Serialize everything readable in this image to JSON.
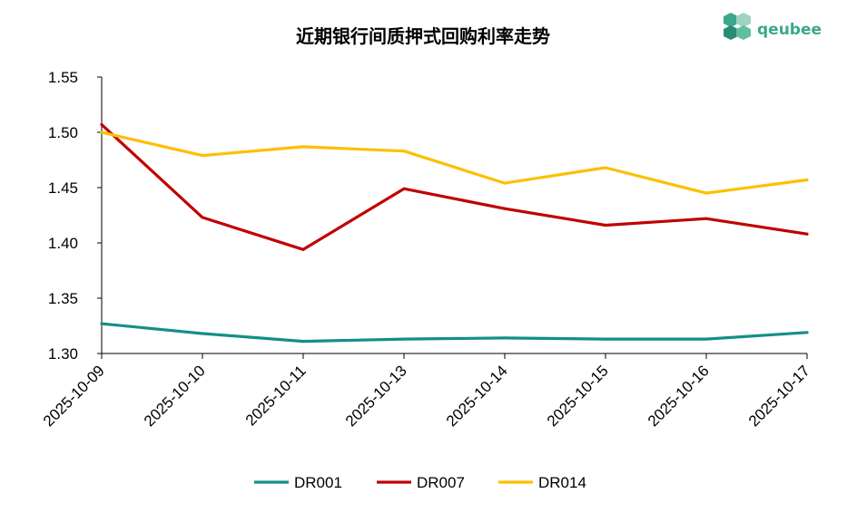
{
  "brand": {
    "name": "qeubee",
    "color": "#3aa88b"
  },
  "chart_data": {
    "type": "line",
    "title": "近期银行间质押式回购利率走势",
    "xlabel": "",
    "ylabel": "",
    "categories": [
      "2025-10-09",
      "2025-10-10",
      "2025-10-11",
      "2025-10-13",
      "2025-10-14",
      "2025-10-15",
      "2025-10-16",
      "2025-10-17"
    ],
    "ylim": [
      1.3,
      1.55
    ],
    "yticks": [
      "1.30",
      "1.35",
      "1.40",
      "1.45",
      "1.50",
      "1.55"
    ],
    "grid": false,
    "legend": "bottom",
    "series": [
      {
        "name": "DR001",
        "color": "#138f87",
        "values": [
          1.327,
          1.318,
          1.311,
          1.313,
          1.314,
          1.313,
          1.313,
          1.319
        ]
      },
      {
        "name": "DR007",
        "color": "#c00000",
        "values": [
          1.507,
          1.423,
          1.394,
          1.449,
          1.431,
          1.416,
          1.422,
          1.408
        ]
      },
      {
        "name": "DR014",
        "color": "#fcc000",
        "values": [
          1.5,
          1.479,
          1.487,
          1.483,
          1.454,
          1.468,
          1.445,
          1.457
        ]
      }
    ]
  }
}
